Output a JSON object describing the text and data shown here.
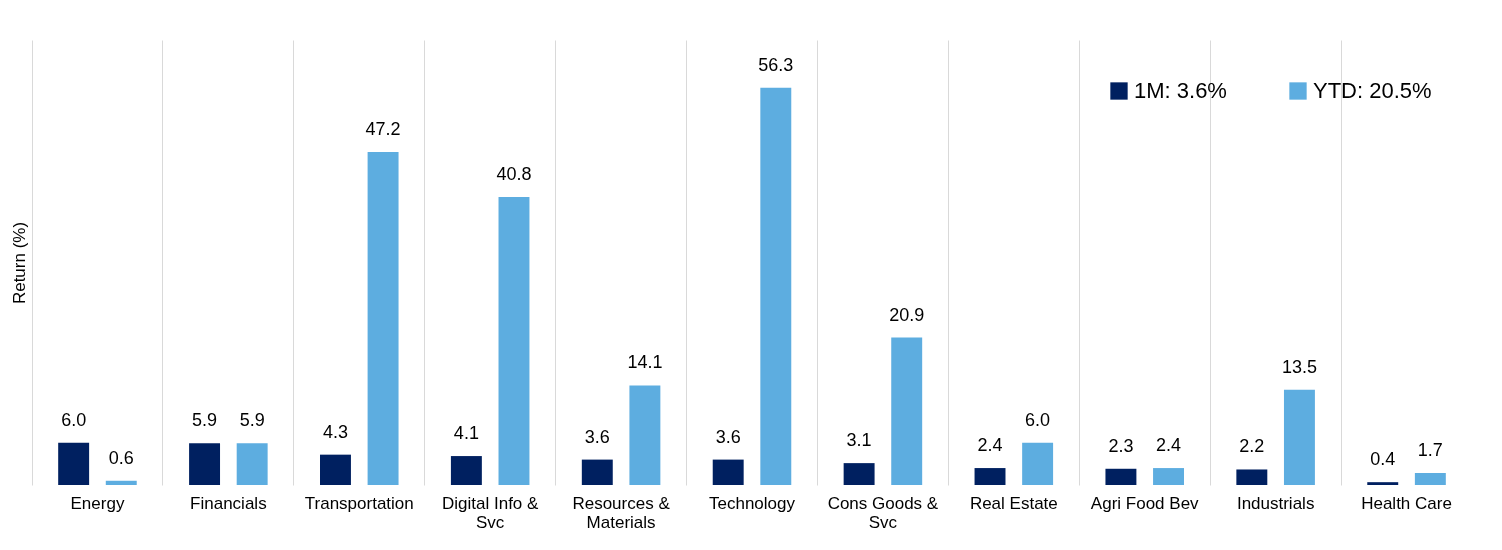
{
  "chart_data": {
    "type": "bar",
    "ylabel": "Return (%)",
    "categories": [
      "Energy",
      "Financials",
      "Transportation",
      "Digital Info & Svc",
      "Resources & Materials",
      "Technology",
      "Cons Goods & Svc",
      "Real Estate",
      "Agri Food Bev",
      "Industrials",
      "Health Care"
    ],
    "series": [
      {
        "name": "1M: 3.6%",
        "color": "#002060",
        "values": [
          6.0,
          5.9,
          4.3,
          4.1,
          3.6,
          3.6,
          3.1,
          2.4,
          2.3,
          2.2,
          0.4
        ],
        "value_labels": [
          "6.0",
          "5.9",
          "4.3",
          "4.1",
          "3.6",
          "3.6",
          "3.1",
          "2.4",
          "2.3",
          "2.2",
          "0.4"
        ]
      },
      {
        "name": "YTD: 20.5%",
        "color": "#5dade0",
        "values": [
          0.6,
          5.9,
          47.2,
          40.8,
          14.1,
          56.3,
          20.9,
          6.0,
          2.4,
          13.5,
          1.7
        ],
        "value_labels": [
          "0.6",
          "5.9",
          "47.2",
          "40.8",
          "14.1",
          "56.3",
          "20.9",
          "6.0",
          "2.4",
          "13.5",
          "1.7"
        ]
      }
    ],
    "grid": "x",
    "legend": "top right"
  }
}
